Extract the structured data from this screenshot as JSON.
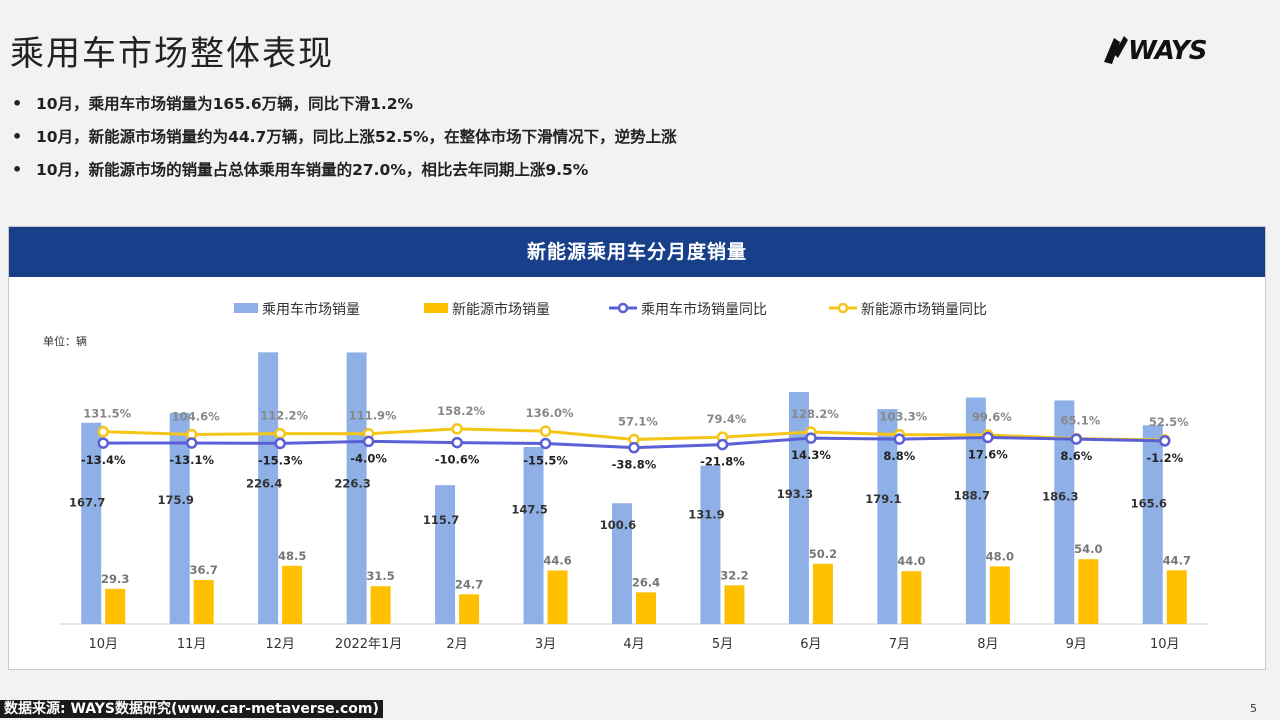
{
  "page": {
    "title": "乘用车市场整体表现",
    "logo_text": "WAYS",
    "page_number": "5",
    "source": "数据来源: WAYS数据研究(www.car-metaverse.com)"
  },
  "bullets": [
    "10月，乘用车市场销量为165.6万辆，同比下滑1.2%",
    "10月，新能源市场销量约为44.7万辆，同比上涨52.5%，在整体市场下滑情况下，逆势上涨",
    "10月，新能源市场的销量占总体乘用车销量的27.0%，相比去年同期上涨9.5%"
  ],
  "colors": {
    "header_bg": "#173f8a",
    "bar_total": "#8fb0e6",
    "bar_nev": "#ffc000",
    "line_total": "#5b5fd6",
    "line_nev": "#f5c518"
  },
  "chart_data": {
    "type": "bar+line",
    "title": "新能源乘用车分月度销量",
    "unit_label": "单位：辆",
    "legend_position": "top",
    "categories": [
      "10月",
      "11月",
      "12月",
      "2022年1月",
      "2月",
      "3月",
      "4月",
      "5月",
      "6月",
      "7月",
      "8月",
      "9月",
      "10月"
    ],
    "series": [
      {
        "name": "乘用车市场销量",
        "kind": "bar",
        "values": [
          167.7,
          175.9,
          226.4,
          226.3,
          115.7,
          147.5,
          100.6,
          131.9,
          193.3,
          179.1,
          188.7,
          186.3,
          165.6
        ]
      },
      {
        "name": "新能源市场销量",
        "kind": "bar",
        "values": [
          29.3,
          36.7,
          48.5,
          31.5,
          24.7,
          44.6,
          26.4,
          32.2,
          50.2,
          44.0,
          48.0,
          54.0,
          44.7
        ]
      },
      {
        "name": "乘用车市场销量同比",
        "kind": "line",
        "values": [
          -13.4,
          -13.1,
          -15.3,
          -4.0,
          -10.6,
          -15.5,
          -38.8,
          -21.8,
          14.3,
          8.8,
          17.6,
          8.6,
          -1.2
        ]
      },
      {
        "name": "新能源市场销量同比",
        "kind": "line",
        "values": [
          131.5,
          104.6,
          112.2,
          111.9,
          158.2,
          136.0,
          57.1,
          79.4,
          128.2,
          103.3,
          99.6,
          65.1,
          52.5
        ]
      }
    ],
    "bar_labels": {
      "total": [
        "167.7",
        "175.9",
        "226.4",
        "226.3",
        "115.7",
        "147.5",
        "100.6",
        "131.9",
        "193.3",
        "179.1",
        "188.7",
        "186.3",
        "165.6"
      ],
      "nev": [
        "29.3",
        "36.7",
        "48.5",
        "31.5",
        "24.7",
        "44.6",
        "26.4",
        "32.2",
        "50.2",
        "44.0",
        "48.0",
        "54.0",
        "44.7"
      ]
    },
    "line_labels": {
      "total": [
        "-13.4%",
        "-13.1%",
        "-15.3%",
        "-4.0%",
        "-10.6%",
        "-15.5%",
        "-38.8%",
        "-21.8%",
        "14.3%",
        "8.8%",
        "17.6%",
        "8.6%",
        "-1.2%"
      ],
      "nev": [
        "131.5%",
        "104.6%",
        "112.2%",
        "111.9%",
        "158.2%",
        "136.0%",
        "57.1%",
        "79.4%",
        "128.2%",
        "103.3%",
        "99.6%",
        "65.1%",
        "52.5%"
      ]
    },
    "bar_ylim": [
      0,
      250
    ],
    "grid": false
  }
}
